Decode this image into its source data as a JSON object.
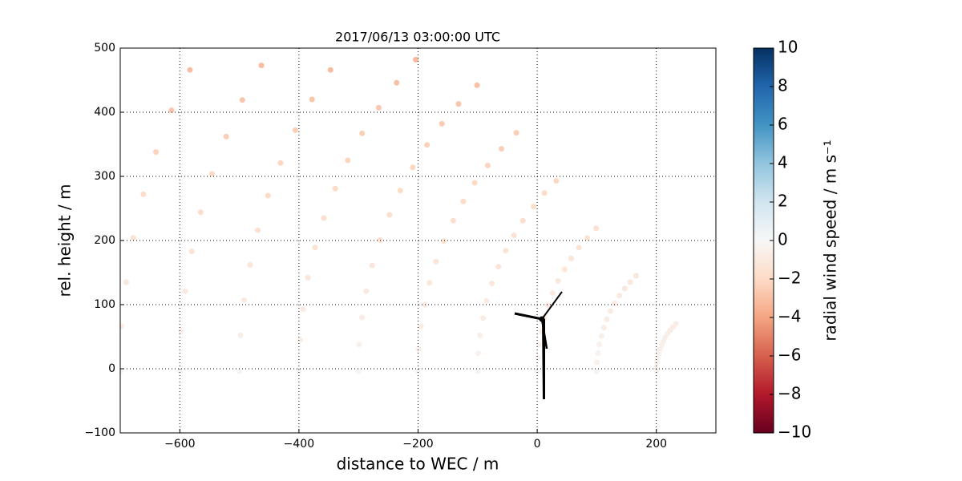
{
  "chart_data": {
    "type": "scatter",
    "title": "2017/06/13 03:00:00 UTC",
    "xlabel": "distance to WEC / m",
    "ylabel": "rel. height / m",
    "xlim": [
      -700,
      300
    ],
    "ylim": [
      -100,
      500
    ],
    "xticks": [
      {
        "value": -600,
        "label": "−600"
      },
      {
        "value": -400,
        "label": "−400"
      },
      {
        "value": -200,
        "label": "−200"
      },
      0,
      200
    ],
    "yticks": [
      {
        "value": -100,
        "label": "−100"
      },
      0,
      100,
      200,
      300,
      400,
      500
    ],
    "grid": true,
    "x": [
      200,
      100,
      0,
      -100,
      -200,
      -300,
      -400,
      -500,
      -600,
      -700,
      200,
      100,
      1,
      -99,
      -199,
      -299,
      -398,
      -498,
      -598,
      -698,
      201,
      102,
      3,
      -96,
      -195,
      -294,
      -393,
      -492,
      -591,
      -690,
      202,
      104,
      7,
      -91,
      -189,
      -287,
      -385,
      -482,
      -580,
      -678,
      204,
      108,
      12,
      -85,
      -181,
      -277,
      -373,
      -469,
      -565,
      -661,
      206,
      112,
      18,
      -76,
      -170,
      -264,
      -358,
      -452,
      -546,
      -640,
      209,
      117,
      26,
      -65,
      -157,
      -248,
      -339,
      -431,
      -522,
      -614,
      212,
      123,
      35,
      -53,
      -141,
      -230,
      -318,
      -406,
      -495,
      -583,
      215,
      130,
      46,
      -39,
      -124,
      -209,
      -294,
      -378,
      -463,
      219,
      138,
      57,
      -24,
      -105,
      -185,
      -266,
      -347,
      223,
      147,
      70,
      -6,
      -83,
      -160,
      -236,
      228,
      156,
      84,
      12,
      -60,
      -132,
      -204,
      233,
      166,
      99,
      32,
      -35,
      -101
    ],
    "y": [
      -4,
      -4,
      -4,
      -4,
      -4,
      -4,
      -4,
      -4,
      -4,
      -4,
      3,
      10,
      17,
      24,
      31,
      38,
      45,
      52,
      59,
      66,
      10,
      24,
      38,
      52,
      66,
      80,
      93,
      107,
      121,
      135,
      17,
      38,
      58,
      79,
      100,
      121,
      142,
      162,
      183,
      204,
      24,
      51,
      79,
      106,
      134,
      161,
      189,
      216,
      244,
      272,
      30,
      64,
      99,
      133,
      167,
      201,
      235,
      270,
      304,
      338,
      37,
      77,
      118,
      159,
      199,
      240,
      281,
      321,
      362,
      403,
      43,
      90,
      137,
      184,
      231,
      278,
      325,
      372,
      419,
      466,
      49,
      102,
      155,
      208,
      261,
      314,
      367,
      420,
      473,
      55,
      114,
      172,
      231,
      290,
      349,
      407,
      466,
      60,
      125,
      189,
      253,
      317,
      382,
      446,
      65,
      135,
      204,
      274,
      343,
      413,
      482,
      70,
      145,
      219,
      293,
      368,
      442
    ],
    "c": [
      -0.3,
      -0.3,
      -0.3,
      -0.3,
      -0.3,
      -0.3,
      -0.3,
      -0.3,
      -0.3,
      -0.3,
      -0.3,
      -0.4,
      -0.4,
      -0.4,
      -0.5,
      -0.5,
      -0.6,
      -0.6,
      -0.7,
      -0.7,
      -0.4,
      -0.4,
      -0.5,
      -0.6,
      -0.7,
      -0.8,
      -0.9,
      -0.9,
      -1.0,
      -1.1,
      -0.4,
      -0.5,
      -0.6,
      -0.8,
      -0.9,
      -1.0,
      -1.2,
      -1.3,
      -1.4,
      -1.5,
      -0.4,
      -0.6,
      -0.8,
      -0.9,
      -1.1,
      -1.3,
      -1.4,
      -1.6,
      -1.8,
      -1.9,
      -0.5,
      -0.7,
      -0.9,
      -1.1,
      -1.3,
      -1.5,
      -1.7,
      -1.9,
      -2.1,
      -2.3,
      -0.5,
      -0.8,
      -1.0,
      -1.3,
      -1.5,
      -1.7,
      -2.0,
      -2.2,
      -2.5,
      -2.7,
      -0.6,
      -0.8,
      -1.1,
      -1.4,
      -1.7,
      -2.0,
      -2.3,
      -2.5,
      -2.8,
      -3.1,
      -0.6,
      -0.9,
      -1.2,
      -1.5,
      -1.9,
      -2.2,
      -2.5,
      -2.8,
      -3.1,
      -0.6,
      -1.0,
      -1.3,
      -1.7,
      -2.0,
      -2.4,
      -2.7,
      -3.1,
      -0.7,
      -1.1,
      -1.4,
      -1.8,
      -2.2,
      -2.6,
      -3.0,
      -0.7,
      -1.1,
      -1.5,
      -1.9,
      -2.4,
      -2.8,
      -3.2,
      -0.7,
      -1.2,
      -1.6,
      -2.1,
      -2.5,
      -3.0
    ],
    "colorbar": {
      "label": "radial wind speed / m s⁻¹",
      "lim": [
        -10,
        10
      ],
      "ticks": [
        {
          "value": -10,
          "label": "−10"
        },
        {
          "value": -8,
          "label": "−8"
        },
        {
          "value": -6,
          "label": "−6"
        },
        {
          "value": -4,
          "label": "−4"
        },
        {
          "value": -2,
          "label": "−2"
        },
        0,
        2,
        4,
        6,
        8,
        10
      ],
      "colormap": [
        "#67001f",
        "#b2182b",
        "#d6604d",
        "#f4a582",
        "#fddbc7",
        "#f7f7f7",
        "#d1e5f0",
        "#92c5de",
        "#4393c3",
        "#2166ac",
        "#053061"
      ]
    }
  }
}
